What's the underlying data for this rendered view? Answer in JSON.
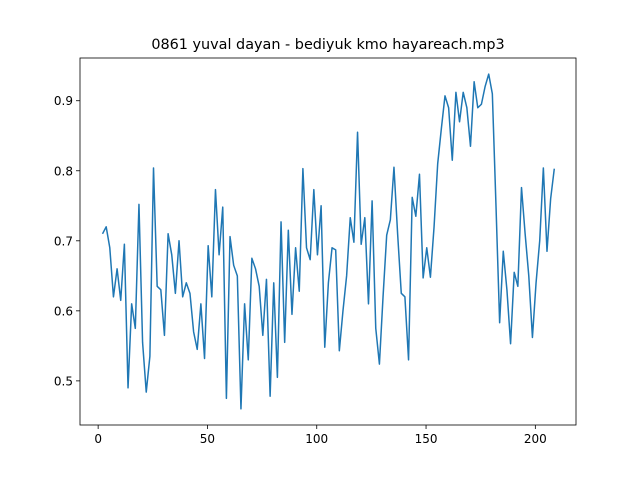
{
  "chart_data": {
    "type": "line",
    "title": "0861 yuval dayan - bediyuk kmo hayareach.mp3",
    "x": [
      2,
      3.67,
      5.33,
      7,
      8.67,
      10.33,
      12,
      13.67,
      15.33,
      17,
      18.67,
      20.33,
      22,
      23.67,
      25.33,
      27,
      28.67,
      30.33,
      32,
      33.67,
      35.33,
      37,
      38.67,
      40.33,
      42,
      43.67,
      45.33,
      47,
      48.67,
      50.33,
      52,
      53.67,
      55.33,
      57,
      58.67,
      60.33,
      62,
      63.67,
      65.33,
      67,
      68.67,
      70.33,
      72,
      73.67,
      75.33,
      77,
      78.67,
      80.33,
      82,
      83.67,
      85.33,
      87,
      88.67,
      90.33,
      92,
      93.67,
      95.33,
      97,
      98.67,
      100.33,
      102,
      103.67,
      105.33,
      107,
      108.67,
      110.33,
      112,
      113.67,
      115.33,
      117,
      118.67,
      120.33,
      122,
      123.67,
      125.33,
      127,
      128.67,
      130.33,
      132,
      133.67,
      135.33,
      137,
      138.67,
      140.33,
      142,
      143.67,
      145.33,
      147,
      148.67,
      150.33,
      152,
      153.67,
      155.33,
      157,
      158.67,
      160.33,
      162,
      163.67,
      165.33,
      167,
      168.67,
      170.33,
      172,
      173.67,
      175.33,
      177,
      178.67,
      180.33,
      182,
      183.67,
      185.33,
      187,
      188.67,
      190.33,
      192,
      193.67,
      195.33,
      197,
      198.67,
      200.33,
      202,
      203.67,
      205.33,
      207,
      208.67
    ],
    "series": [
      {
        "color": "#1f77b4",
        "values": [
          0.71,
          0.72,
          0.69,
          0.62,
          0.66,
          0.615,
          0.695,
          0.49,
          0.61,
          0.575,
          0.752,
          0.555,
          0.484,
          0.535,
          0.804,
          0.635,
          0.63,
          0.565,
          0.71,
          0.68,
          0.625,
          0.7,
          0.62,
          0.64,
          0.625,
          0.57,
          0.545,
          0.61,
          0.532,
          0.693,
          0.62,
          0.773,
          0.68,
          0.748,
          0.475,
          0.706,
          0.665,
          0.65,
          0.46,
          0.61,
          0.53,
          0.675,
          0.66,
          0.635,
          0.565,
          0.645,
          0.478,
          0.64,
          0.505,
          0.727,
          0.555,
          0.715,
          0.595,
          0.69,
          0.628,
          0.803,
          0.69,
          0.673,
          0.773,
          0.68,
          0.75,
          0.548,
          0.64,
          0.69,
          0.687,
          0.543,
          0.6,
          0.65,
          0.733,
          0.698,
          0.855,
          0.695,
          0.733,
          0.61,
          0.757,
          0.575,
          0.524,
          0.62,
          0.708,
          0.73,
          0.805,
          0.71,
          0.625,
          0.62,
          0.53,
          0.762,
          0.735,
          0.795,
          0.647,
          0.69,
          0.648,
          0.72,
          0.81,
          0.86,
          0.907,
          0.89,
          0.815,
          0.912,
          0.87,
          0.912,
          0.89,
          0.835,
          0.927,
          0.89,
          0.895,
          0.92,
          0.938,
          0.91,
          0.75,
          0.583,
          0.685,
          0.63,
          0.553,
          0.655,
          0.635,
          0.776,
          0.71,
          0.65,
          0.562,
          0.64,
          0.7,
          0.804,
          0.685,
          0.76,
          0.803
        ]
      }
    ],
    "xlim": [
      -8.3,
      218.6
    ],
    "ylim": [
      0.437,
      0.961
    ],
    "xticks": [
      0,
      50,
      100,
      150,
      200
    ],
    "yticks": [
      0.5,
      0.6,
      0.7,
      0.8,
      0.9
    ]
  }
}
